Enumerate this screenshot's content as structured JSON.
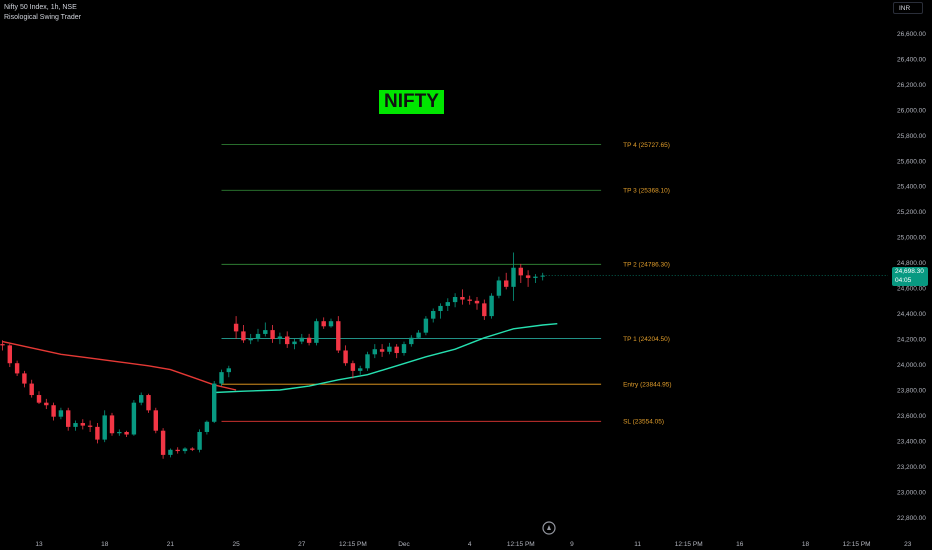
{
  "header": {
    "title": "Nifty 50 Index, 1h, NSE",
    "indicator": "Risological Swing Trader"
  },
  "currency_button": "INR",
  "badge_text": "NIFTY",
  "last_price": {
    "price": "24,698.30",
    "countdown": "04:05",
    "value": 24698.3
  },
  "colors": {
    "up": "#089981",
    "down": "#f23645",
    "tp_line": "#2e7d32",
    "tp1_line": "#26a69a",
    "entry_line": "#f5a623",
    "sl_line": "#e53935",
    "label_text": "#e09d2b",
    "ma_red": "#e53935",
    "ma_teal": "#26e0b0",
    "badge_bg": "#00e600"
  },
  "chart_data": {
    "type": "candlestick",
    "ylim": [
      22700,
      26800
    ],
    "y_ticks": [
      "22,800.00",
      "23,000.00",
      "23,200.00",
      "23,400.00",
      "23,600.00",
      "23,800.00",
      "24,000.00",
      "24,200.00",
      "24,400.00",
      "24,600.00",
      "24,800.00",
      "25,000.00",
      "25,200.00",
      "25,400.00",
      "25,600.00",
      "25,800.00",
      "26,000.00",
      "26,200.00",
      "26,400.00",
      "26,600.00"
    ],
    "x_ticks": [
      {
        "label": "13",
        "bar": 5
      },
      {
        "label": "18",
        "bar": 14
      },
      {
        "label": "21",
        "bar": 23
      },
      {
        "label": "25",
        "bar": 32
      },
      {
        "label": "27",
        "bar": 41
      },
      {
        "label": "12:15 PM",
        "bar": 48
      },
      {
        "label": "Dec",
        "bar": 55
      },
      {
        "label": "4",
        "bar": 64
      },
      {
        "label": "12:15 PM",
        "bar": 71
      },
      {
        "label": "9",
        "bar": 78
      },
      {
        "label": "11",
        "bar": 87
      },
      {
        "label": "12:15 PM",
        "bar": 94
      },
      {
        "label": "16",
        "bar": 101
      },
      {
        "label": "18",
        "bar": 110
      },
      {
        "label": "12:15 PM",
        "bar": 117
      },
      {
        "label": "23",
        "bar": 124
      }
    ],
    "levels": [
      {
        "label": "TP 4 (25727.65)",
        "value": 25727.65,
        "kind": "tp"
      },
      {
        "label": "TP 3 (25368.10)",
        "value": 25368.1,
        "kind": "tp"
      },
      {
        "label": "TP 2 (24786.30)",
        "value": 24786.3,
        "kind": "tp"
      },
      {
        "label": "TP 1 (24204.50)",
        "value": 24204.5,
        "kind": "tp1"
      },
      {
        "label": "Entry (23844.95)",
        "value": 23844.95,
        "kind": "entry"
      },
      {
        "label": "SL (23554.05)",
        "value": 23554.05,
        "kind": "sl"
      }
    ],
    "level_bars": [
      30,
      82
    ],
    "candles": [
      [
        24160,
        24190,
        24110,
        24150
      ],
      [
        24150,
        24160,
        23980,
        24010
      ],
      [
        24010,
        24030,
        23910,
        23930
      ],
      [
        23930,
        23950,
        23820,
        23850
      ],
      [
        23850,
        23880,
        23740,
        23760
      ],
      [
        23760,
        23790,
        23690,
        23700
      ],
      [
        23700,
        23730,
        23650,
        23680
      ],
      [
        23680,
        23700,
        23560,
        23590
      ],
      [
        23590,
        23660,
        23570,
        23640
      ],
      [
        23640,
        23660,
        23480,
        23510
      ],
      [
        23510,
        23560,
        23480,
        23540
      ],
      [
        23540,
        23570,
        23490,
        23520
      ],
      [
        23520,
        23560,
        23470,
        23510
      ],
      [
        23510,
        23540,
        23380,
        23410
      ],
      [
        23410,
        23640,
        23390,
        23600
      ],
      [
        23600,
        23620,
        23440,
        23460
      ],
      [
        23460,
        23490,
        23440,
        23470
      ],
      [
        23470,
        23480,
        23430,
        23450
      ],
      [
        23450,
        23720,
        23440,
        23700
      ],
      [
        23700,
        23780,
        23680,
        23760
      ],
      [
        23760,
        23770,
        23620,
        23640
      ],
      [
        23640,
        23660,
        23460,
        23480
      ],
      [
        23480,
        23500,
        23260,
        23290
      ],
      [
        23290,
        23340,
        23270,
        23330
      ],
      [
        23330,
        23350,
        23300,
        23320
      ],
      [
        23320,
        23350,
        23300,
        23340
      ],
      [
        23340,
        23350,
        23320,
        23330
      ],
      [
        23330,
        23490,
        23310,
        23470
      ],
      [
        23470,
        23560,
        23450,
        23550
      ],
      [
        23550,
        23870,
        23540,
        23850
      ],
      [
        23850,
        23960,
        23830,
        23940
      ],
      [
        23940,
        23990,
        23900,
        23970
      ],
      [
        24320,
        24380,
        24200,
        24260
      ],
      [
        24260,
        24310,
        24170,
        24190
      ],
      [
        24190,
        24240,
        24160,
        24200
      ],
      [
        24200,
        24280,
        24180,
        24240
      ],
      [
        24240,
        24330,
        24220,
        24270
      ],
      [
        24270,
        24310,
        24170,
        24200
      ],
      [
        24200,
        24250,
        24160,
        24220
      ],
      [
        24220,
        24260,
        24130,
        24160
      ],
      [
        24160,
        24200,
        24120,
        24180
      ],
      [
        24180,
        24240,
        24160,
        24210
      ],
      [
        24210,
        24240,
        24150,
        24170
      ],
      [
        24170,
        24360,
        24150,
        24340
      ],
      [
        24340,
        24370,
        24280,
        24300
      ],
      [
        24300,
        24360,
        24290,
        24340
      ],
      [
        24340,
        24380,
        24090,
        24110
      ],
      [
        24110,
        24150,
        23990,
        24010
      ],
      [
        24010,
        24030,
        23890,
        23950
      ],
      [
        23950,
        23990,
        23920,
        23970
      ],
      [
        23970,
        24100,
        23950,
        24080
      ],
      [
        24080,
        24160,
        24050,
        24120
      ],
      [
        24120,
        24160,
        24060,
        24100
      ],
      [
        24100,
        24170,
        24080,
        24140
      ],
      [
        24140,
        24160,
        24050,
        24090
      ],
      [
        24090,
        24180,
        24070,
        24160
      ],
      [
        24160,
        24230,
        24140,
        24210
      ],
      [
        24210,
        24270,
        24200,
        24250
      ],
      [
        24250,
        24380,
        24230,
        24360
      ],
      [
        24360,
        24440,
        24330,
        24420
      ],
      [
        24420,
        24480,
        24360,
        24460
      ],
      [
        24460,
        24520,
        24420,
        24490
      ],
      [
        24490,
        24560,
        24450,
        24530
      ],
      [
        24530,
        24590,
        24470,
        24510
      ],
      [
        24510,
        24540,
        24470,
        24500
      ],
      [
        24500,
        24530,
        24430,
        24480
      ],
      [
        24480,
        24510,
        24350,
        24380
      ],
      [
        24380,
        24560,
        24360,
        24540
      ],
      [
        24540,
        24690,
        24520,
        24660
      ],
      [
        24660,
        24720,
        24590,
        24610
      ],
      [
        24610,
        24880,
        24500,
        24760
      ],
      [
        24760,
        24790,
        24640,
        24700
      ],
      [
        24700,
        24740,
        24610,
        24680
      ],
      [
        24680,
        24710,
        24640,
        24690
      ],
      [
        24690,
        24720,
        24660,
        24698
      ]
    ],
    "ma_red": [
      [
        0,
        24180
      ],
      [
        4,
        24130
      ],
      [
        8,
        24080
      ],
      [
        12,
        24050
      ],
      [
        16,
        24020
      ],
      [
        20,
        23990
      ],
      [
        23,
        23960
      ],
      [
        26,
        23900
      ],
      [
        29,
        23840
      ],
      [
        32,
        23800
      ]
    ],
    "ma_teal": [
      [
        29,
        23780
      ],
      [
        33,
        23790
      ],
      [
        38,
        23800
      ],
      [
        42,
        23830
      ],
      [
        46,
        23880
      ],
      [
        50,
        23920
      ],
      [
        54,
        23990
      ],
      [
        58,
        24060
      ],
      [
        62,
        24120
      ],
      [
        66,
        24210
      ],
      [
        70,
        24280
      ],
      [
        74,
        24310
      ],
      [
        76,
        24320
      ]
    ]
  }
}
